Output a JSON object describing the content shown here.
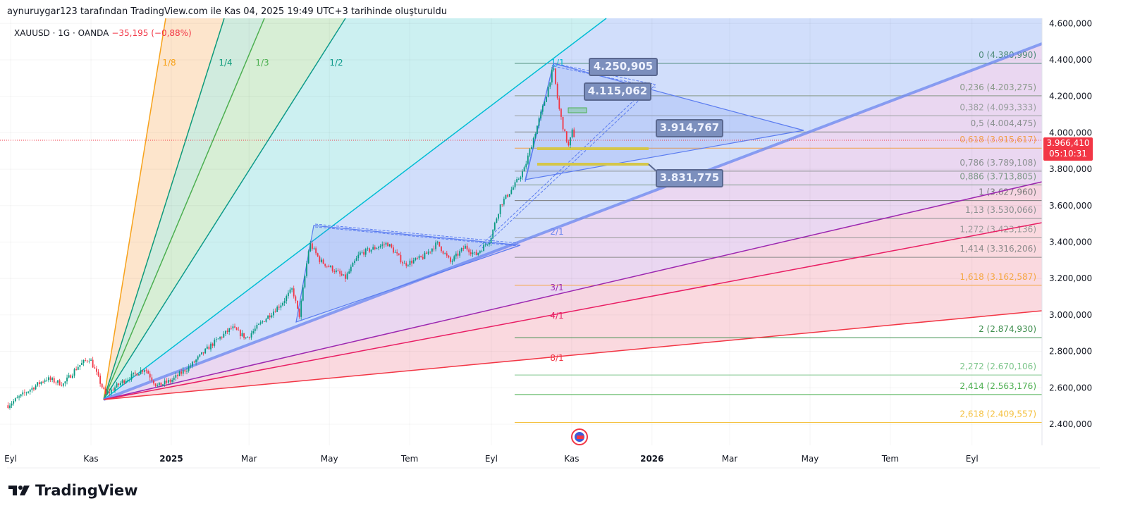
{
  "header": {
    "credit": "aynuruygar123 tarafından TradingView.com ile Kas 04, 2025 19:49 UTC+3 tarihinde oluşturuldu"
  },
  "symbol": {
    "name": "XAUUSD · 1G · OANDA",
    "change": "−35,195 (−0,88%)"
  },
  "brand": {
    "logo_text": "TradingView"
  },
  "price_tag": {
    "price": "3.966,410",
    "countdown": "05:10:31",
    "color": "#f23645"
  },
  "callouts": [
    "4.250,905",
    "4.115,062",
    "3.914,767",
    "3.831,775"
  ],
  "chart_data": {
    "type": "candlestick",
    "title": "",
    "price_axis": {
      "ticks": [
        4600,
        4400,
        4200,
        4000,
        3800,
        3600,
        3400,
        3200,
        3000,
        2800,
        2600,
        2400
      ],
      "tick_labels": [
        "4.600,000",
        "4.400,000",
        "4.200,000",
        "4.000,000",
        "3.800,000",
        "3.600,000",
        "3.400,000",
        "3.200,000",
        "3.000,000",
        "2.800,000",
        "2.600,000",
        "2.400,000"
      ]
    },
    "time_axis": {
      "tick_labels": [
        {
          "label": "Eyl",
          "date": "2024-09-01"
        },
        {
          "label": "Kas",
          "date": "2024-11-01"
        },
        {
          "label": "2025",
          "date": "2025-01-01",
          "bold": true
        },
        {
          "label": "Mar",
          "date": "2025-03-01"
        },
        {
          "label": "May",
          "date": "2025-05-01"
        },
        {
          "label": "Tem",
          "date": "2025-07-01"
        },
        {
          "label": "Eyl",
          "date": "2025-09-01"
        },
        {
          "label": "Kas",
          "date": "2025-11-01"
        },
        {
          "label": "2026",
          "date": "2026-01-01",
          "bold": true
        },
        {
          "label": "Mar",
          "date": "2026-03-01"
        },
        {
          "label": "May",
          "date": "2026-05-01"
        },
        {
          "label": "Tem",
          "date": "2026-07-01"
        },
        {
          "label": "Eyl",
          "date": "2026-09-01"
        }
      ]
    },
    "last_price": 3966.41,
    "closes": [
      [
        "2024-08-30",
        2504
      ],
      [
        "2024-09-14",
        2582
      ],
      [
        "2024-09-28",
        2651
      ],
      [
        "2024-10-11",
        2620
      ],
      [
        "2024-10-22",
        2717
      ],
      [
        "2024-10-31",
        2764
      ],
      [
        "2024-11-12",
        2562
      ],
      [
        "2024-11-26",
        2640
      ],
      [
        "2024-12-12",
        2706
      ],
      [
        "2024-12-21",
        2609
      ],
      [
        "2025-01-01",
        2640
      ],
      [
        "2025-01-15",
        2717
      ],
      [
        "2025-01-31",
        2833
      ],
      [
        "2025-02-16",
        2930
      ],
      [
        "2025-02-27",
        2872
      ],
      [
        "2025-03-12",
        2969
      ],
      [
        "2025-03-26",
        3065
      ],
      [
        "2025-04-03",
        3143
      ],
      [
        "2025-04-08",
        2988
      ],
      [
        "2025-04-16",
        3394
      ],
      [
        "2025-04-24",
        3297
      ],
      [
        "2025-05-02",
        3259
      ],
      [
        "2025-05-13",
        3201
      ],
      [
        "2025-05-24",
        3336
      ],
      [
        "2025-06-14",
        3394
      ],
      [
        "2025-06-27",
        3278
      ],
      [
        "2025-07-11",
        3317
      ],
      [
        "2025-07-22",
        3394
      ],
      [
        "2025-08-01",
        3290
      ],
      [
        "2025-08-12",
        3375
      ],
      [
        "2025-08-20",
        3328
      ],
      [
        "2025-08-31",
        3413
      ],
      [
        "2025-09-08",
        3607
      ],
      [
        "2025-09-18",
        3704
      ],
      [
        "2025-09-26",
        3800
      ],
      [
        "2025-10-04",
        3994
      ],
      [
        "2025-10-12",
        4187
      ],
      [
        "2025-10-18",
        4361
      ],
      [
        "2025-10-22",
        4148
      ],
      [
        "2025-10-26",
        4013
      ],
      [
        "2025-10-30",
        3916
      ],
      [
        "2025-11-01",
        4013
      ],
      [
        "2025-11-04",
        3966
      ]
    ],
    "up_color": "#089981",
    "down_color": "#f23645",
    "fib_levels": [
      {
        "label": "0 (4.380,990)",
        "price": 4380.99,
        "color": "#4d8a78"
      },
      {
        "label": "0,236 (4.203,275)",
        "price": 4203.275,
        "color": "#8a9a8a"
      },
      {
        "label": "0,382 (4.093,333)",
        "price": 4093.333,
        "color": "#9aa0a0"
      },
      {
        "label": "0,5 (4.004,475)",
        "price": 4004.475,
        "color": "#8a9090"
      },
      {
        "label": "0,618 (3.915,617)",
        "price": 3915.617,
        "color": "#f0a04b"
      },
      {
        "label": "0,786 (3.789,108)",
        "price": 3789.108,
        "color": "#8a9090"
      },
      {
        "label": "0,886 (3.713,805)",
        "price": 3713.805,
        "color": "#7f9a88"
      },
      {
        "label": "1 (3.627,960)",
        "price": 3627.96,
        "color": "#7a7a7a"
      },
      {
        "label": "1,13 (3.530,066)",
        "price": 3530.066,
        "color": "#8a9090"
      },
      {
        "label": "1,272 (3.423,136)",
        "price": 3423.136,
        "color": "#9a9a9a"
      },
      {
        "label": "1,414 (3.316,206)",
        "price": 3316.206,
        "color": "#8a8a8a"
      },
      {
        "label": "1,618 (3.162,587)",
        "price": 3162.587,
        "color": "#f5a742"
      },
      {
        "label": "2 (2.874,930)",
        "price": 2874.93,
        "color": "#3f8f4f"
      },
      {
        "label": "2,272 (2.670,106)",
        "price": 2670.106,
        "color": "#7cc58a"
      },
      {
        "label": "2,414 (2.563,176)",
        "price": 2563.176,
        "color": "#4caf50"
      },
      {
        "label": "2,618 (2.409,557)",
        "price": 2409.557,
        "color": "#f5c242"
      }
    ],
    "gann_fan": [
      {
        "label": "1/8",
        "color": "#f7a21b",
        "fill": "#fde4c9"
      },
      {
        "label": "1/4",
        "color": "#0d9a7a",
        "fill": "#cdeadc"
      },
      {
        "label": "1/3",
        "color": "#4caf50",
        "fill": "#d5edd3"
      },
      {
        "label": "1/2",
        "color": "#0d9a8a",
        "fill": "#c9eff0"
      },
      {
        "label": "1/1",
        "color": "#00bcd4",
        "fill": "#cfdcfb"
      },
      {
        "label": "2/1",
        "color": "#6b86f0",
        "fill": "#e9d5f0"
      },
      {
        "label": "3/1",
        "color": "#9c27b0",
        "fill": "#f6d3df"
      },
      {
        "label": "4/1",
        "color": "#e91e63",
        "fill": "#fad7dd"
      },
      {
        "label": "8/1",
        "color": "#f23645",
        "fill": "#ffffff"
      }
    ]
  }
}
